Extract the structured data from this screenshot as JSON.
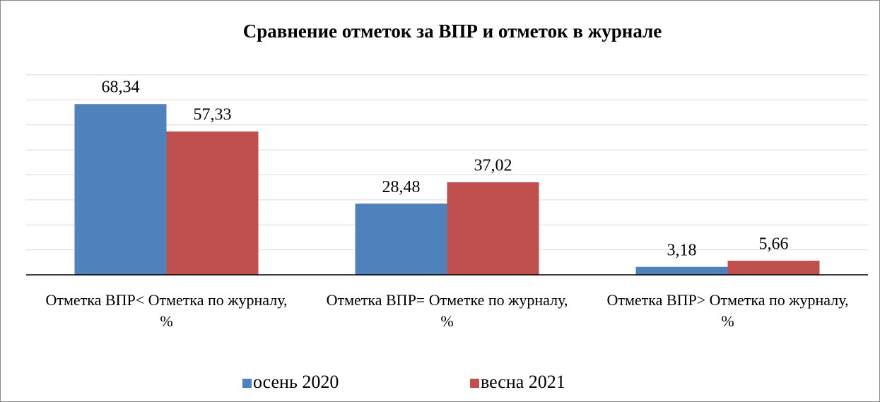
{
  "chart_data": {
    "type": "bar",
    "title": "Сравнение отметок за ВПР и отметок в журнале",
    "categories": [
      "Отметка  ВПР< Отметка по журналу, %",
      "Отметка ВПР= Отметке по журналу, %",
      "Отметка ВПР> Отметка по журналу, %"
    ],
    "series": [
      {
        "name": "осень 2020",
        "color": "#4f81bd",
        "values": [
          68.34,
          28.48,
          3.18
        ],
        "value_labels": [
          "68,34",
          "28,48",
          "3,18"
        ]
      },
      {
        "name": "весна 2021",
        "color": "#c0504d",
        "values": [
          57.33,
          37.02,
          5.66
        ],
        "value_labels": [
          "57,33",
          "37,02",
          "5,66"
        ]
      }
    ],
    "ylim": [
      0,
      80
    ],
    "yticks": [
      0,
      10,
      20,
      30,
      40,
      50,
      60,
      70,
      80
    ],
    "grid": true,
    "legend": "bottom"
  }
}
